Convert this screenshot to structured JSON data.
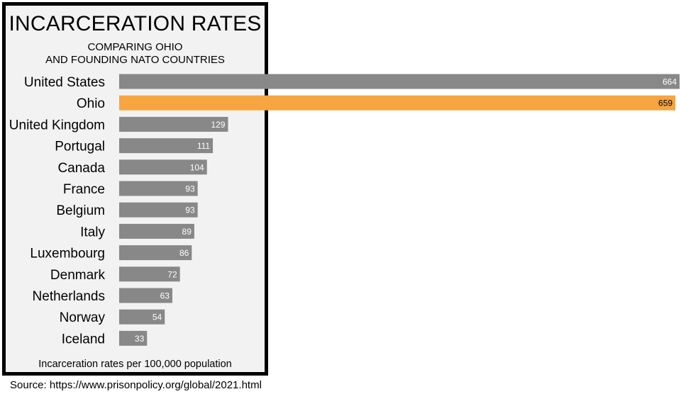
{
  "header": {
    "title": "INCARCERATION RATES",
    "subtitle_line1": "COMPARING OHIO",
    "subtitle_line2": "AND FOUNDING NATO COUNTRIES"
  },
  "footer": {
    "axis_note": "Incarceration rates per 100,000 population",
    "source": "Source: https://www.prisonpolicy.org/global/2021.html"
  },
  "colors": {
    "bar_default": "#888888",
    "bar_highlight": "#f7a540",
    "panel_background": "#f2f2f2",
    "panel_border": "#000000"
  },
  "chart_data": {
    "type": "bar",
    "orientation": "horizontal",
    "title": "INCARCERATION RATES",
    "subtitle": "COMPARING OHIO AND FOUNDING NATO COUNTRIES",
    "xlabel": "Incarceration rates per 100,000 population",
    "ylabel": "",
    "xlim": [
      0,
      664
    ],
    "grid": false,
    "highlight": "Ohio",
    "categories": [
      "United States",
      "Ohio",
      "United Kingdom",
      "Portugal",
      "Canada",
      "France",
      "Belgium",
      "Italy",
      "Luxembourg",
      "Denmark",
      "Netherlands",
      "Norway",
      "Iceland"
    ],
    "values": [
      664,
      659,
      129,
      111,
      104,
      93,
      93,
      89,
      86,
      72,
      63,
      54,
      33
    ]
  }
}
